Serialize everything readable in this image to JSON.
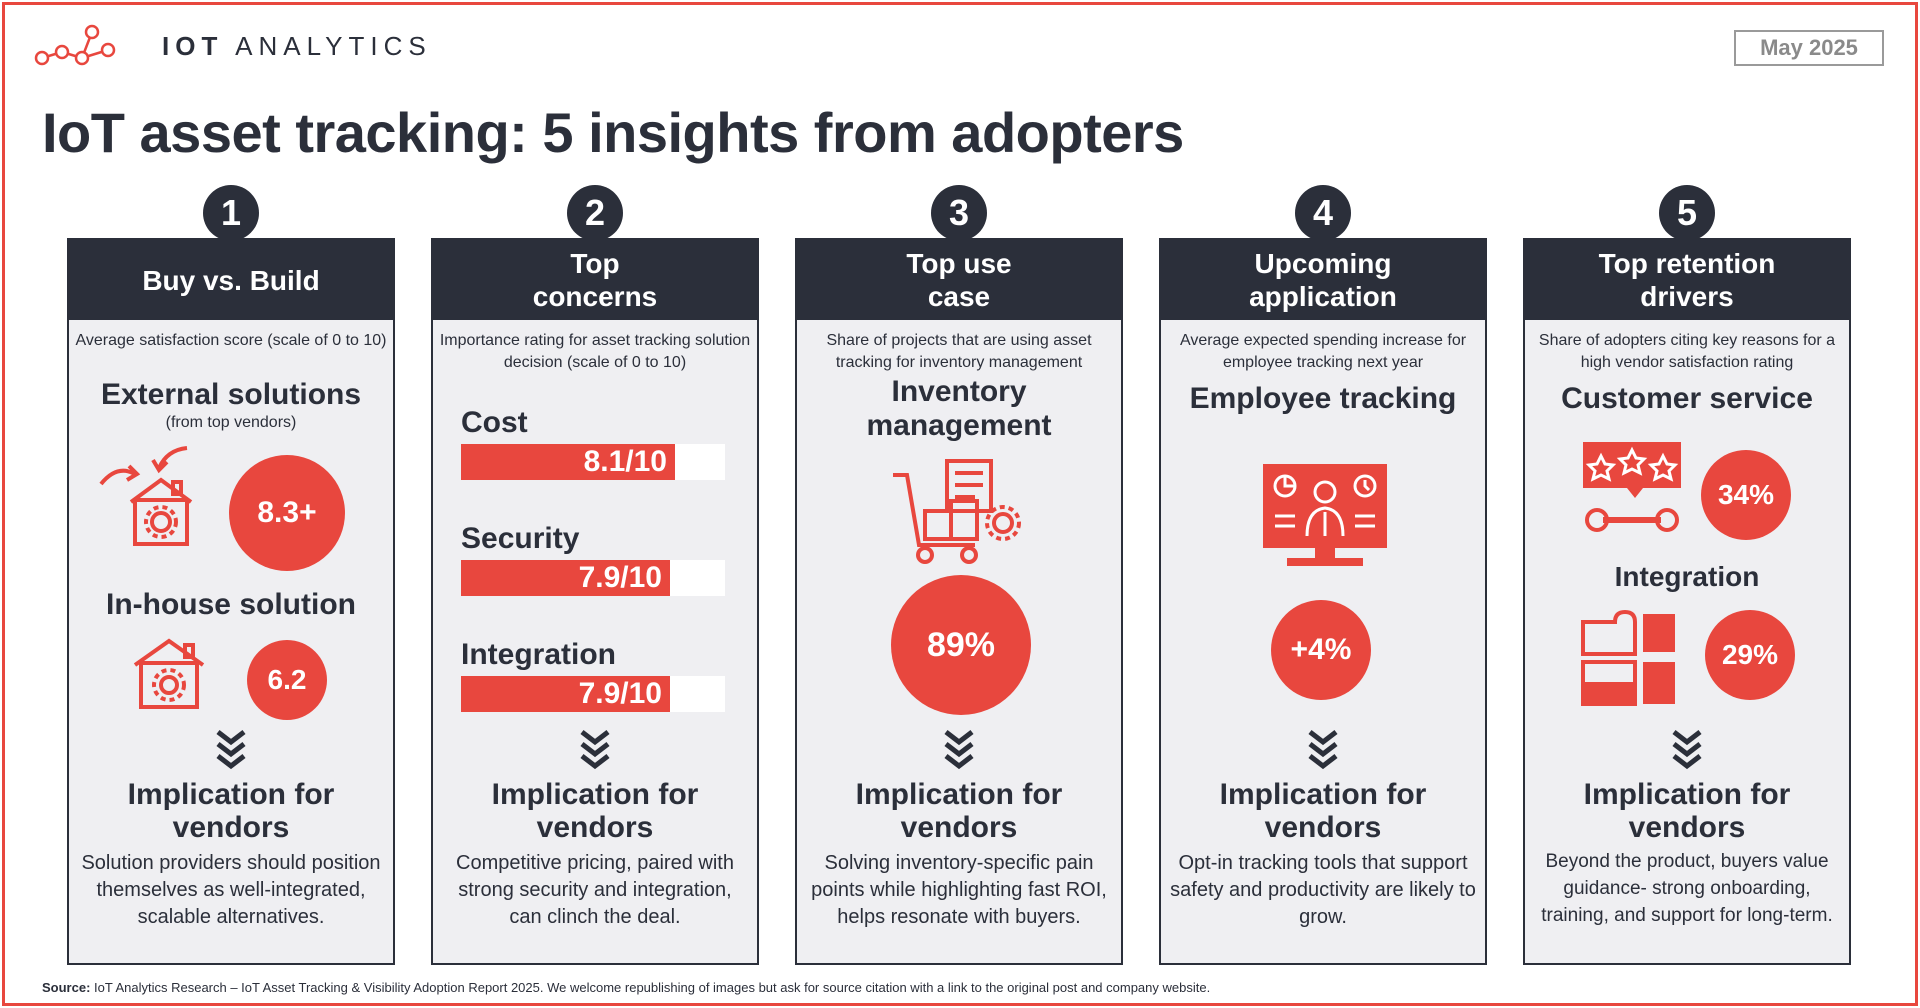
{
  "brand": {
    "name_bold": "IOT",
    "name_rest": "ANALYTICS",
    "accent": "#e8473e",
    "dark": "#2b2f3a"
  },
  "date": "May 2025",
  "title": "IoT asset tracking: 5 insights from adopters",
  "implication_label": "Implication for vendors",
  "insights": [
    {
      "number": "1",
      "header": "Buy vs. Build",
      "description": "Average satisfaction score (scale of 0 to 10)",
      "external_title": "External solutions",
      "external_sub": "(from top vendors)",
      "external_value": "8.3+",
      "inhouse_title": "In-house solution",
      "inhouse_value": "6.2",
      "implication": "Solution providers should position themselves as well-integrated, scalable alternatives."
    },
    {
      "number": "2",
      "header": "Top concerns",
      "description": "Importance rating for asset tracking solution decision (scale of 0 to 10)",
      "implication": "Competitive pricing, paired with strong security and integration, can clinch the deal."
    },
    {
      "number": "3",
      "header": "Top use case",
      "description": "Share of projects that are using asset tracking for inventory management",
      "focus": "Inventory management",
      "value": "89%",
      "implication": "Solving inventory-specific pain points while highlighting fast ROI, helps resonate with buyers."
    },
    {
      "number": "4",
      "header": "Upcoming application",
      "description": "Average expected spending increase for employee tracking next year",
      "focus": "Employee tracking",
      "value": "+4%",
      "implication": "Opt-in tracking tools that support safety and productivity are likely to grow."
    },
    {
      "number": "5",
      "header": "Top retention drivers",
      "description": "Share of adopters citing key reasons for a high vendor satisfaction rating",
      "driver1": "Customer service",
      "driver1_value": "34%",
      "driver2": "Integration",
      "driver2_value": "29%",
      "implication": "Beyond the product, buyers value guidance- strong onboarding, training, and support for long-term."
    }
  ],
  "chart_data": {
    "type": "bar",
    "categories": [
      "Cost",
      "Security",
      "Integration"
    ],
    "values": [
      8.1,
      7.9,
      7.9
    ],
    "labels": [
      "8.1/10",
      "7.9/10",
      "7.9/10"
    ],
    "xlim": [
      0,
      10
    ]
  },
  "source_bold": "Source:",
  "source_text": " IoT Analytics Research – IoT Asset Tracking & Visibility Adoption Report 2025. We welcome republishing of images but ask for source citation with a link to the original post and company website."
}
